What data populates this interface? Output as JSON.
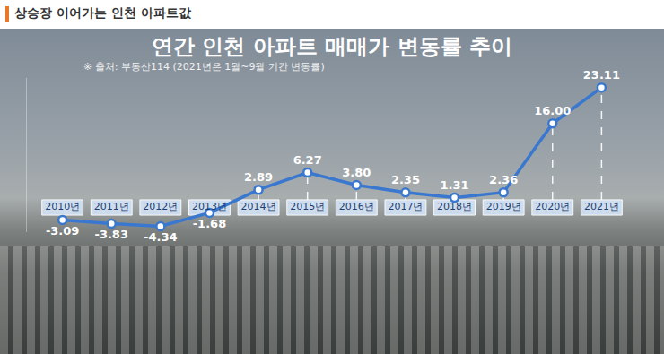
{
  "header": "상승장 이어가는 인천 아파트값",
  "chart_data": {
    "type": "line",
    "title": "연간 인천 아파트 매매가 변동률 추이",
    "subtitle": "※ 출처: 부동산114 (2021년은 1월~9월 기간 변동률)",
    "categories": [
      "2010년",
      "2011년",
      "2012년",
      "2013년",
      "2014년",
      "2015년",
      "2016년",
      "2017년",
      "2018년",
      "2019년",
      "2020년",
      "2021년"
    ],
    "values": [
      -3.09,
      -3.83,
      -4.34,
      -1.68,
      2.89,
      6.27,
      3.8,
      2.35,
      1.31,
      2.36,
      16.0,
      23.11
    ],
    "value_labels": [
      "-3.09",
      "-3.83",
      "-4.34",
      "-1.68",
      "2.89",
      "6.27",
      "3.80",
      "2.35",
      "1.31",
      "2.36",
      "16.00",
      "23.11"
    ],
    "color": "#3a78d0",
    "ylim": [
      -5.5,
      25
    ],
    "yticks": [],
    "tick_labels": "x",
    "data_labels": true,
    "marker": "circle",
    "line_style": "solid",
    "grid": false
  }
}
